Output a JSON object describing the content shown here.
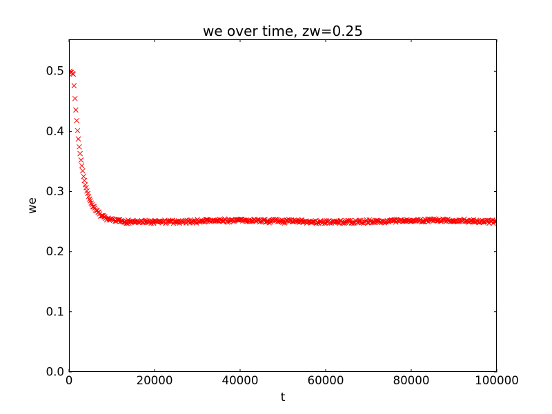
{
  "figure": {
    "background_color": "#ffffff",
    "text_color": "#000000",
    "spine_color": "#000000"
  },
  "chart_data": {
    "type": "scatter",
    "title": "we over time, zw=0.25",
    "xlabel": "t",
    "ylabel": "we",
    "xlim": [
      0,
      100000
    ],
    "ylim": [
      0,
      0.553
    ],
    "grid": false,
    "legend": null,
    "xticks": {
      "values": [
        0,
        20000,
        40000,
        60000,
        80000,
        100000
      ],
      "labels": [
        "0",
        "20000",
        "40000",
        "60000",
        "80000",
        "100000"
      ]
    },
    "yticks": {
      "values": [
        0.0,
        0.1,
        0.2,
        0.3,
        0.4,
        0.5
      ],
      "labels": [
        "0.0",
        "0.1",
        "0.2",
        "0.3",
        "0.4",
        "0.5"
      ]
    },
    "axes_style": {
      "tick_direction": "in",
      "tick_length": 4,
      "ticks_on_all_sides": true
    },
    "marker": {
      "shape": "x",
      "color": "#ff0000",
      "half_size": 3.5,
      "stroke_width": 1
    },
    "series": [
      {
        "name": "we",
        "sampling": {
          "t_start": 200,
          "t_step": 200,
          "t_end": 100000
        },
        "model": {
          "kind": "plateau_then_exponential_decay",
          "start_value": 0.5,
          "plateau_until_t": 1000,
          "asymptote": 0.2505,
          "tau": 2000,
          "noise_amplitude": 0.0032,
          "decay_noise_scale": 0.3,
          "wiggle_amplitude": 0.0013,
          "wiggle_period": 44000,
          "wiggle_center": 29000,
          "seed": 7
        },
        "key_points": [
          [
            200,
            0.5
          ],
          [
            600,
            0.498
          ],
          [
            1000,
            0.492
          ],
          [
            1400,
            0.455
          ],
          [
            2000,
            0.4
          ],
          [
            2600,
            0.36
          ],
          [
            3200,
            0.333
          ],
          [
            4000,
            0.306
          ],
          [
            5000,
            0.284
          ],
          [
            6000,
            0.271
          ],
          [
            8000,
            0.258
          ],
          [
            10000,
            0.2535
          ],
          [
            15000,
            0.251
          ],
          [
            20000,
            0.249
          ],
          [
            25000,
            0.249
          ],
          [
            30000,
            0.25
          ],
          [
            40000,
            0.252
          ],
          [
            50000,
            0.251
          ],
          [
            60000,
            0.25
          ],
          [
            70000,
            0.25
          ],
          [
            80000,
            0.25
          ],
          [
            90000,
            0.25
          ],
          [
            100000,
            0.25
          ]
        ]
      }
    ]
  }
}
